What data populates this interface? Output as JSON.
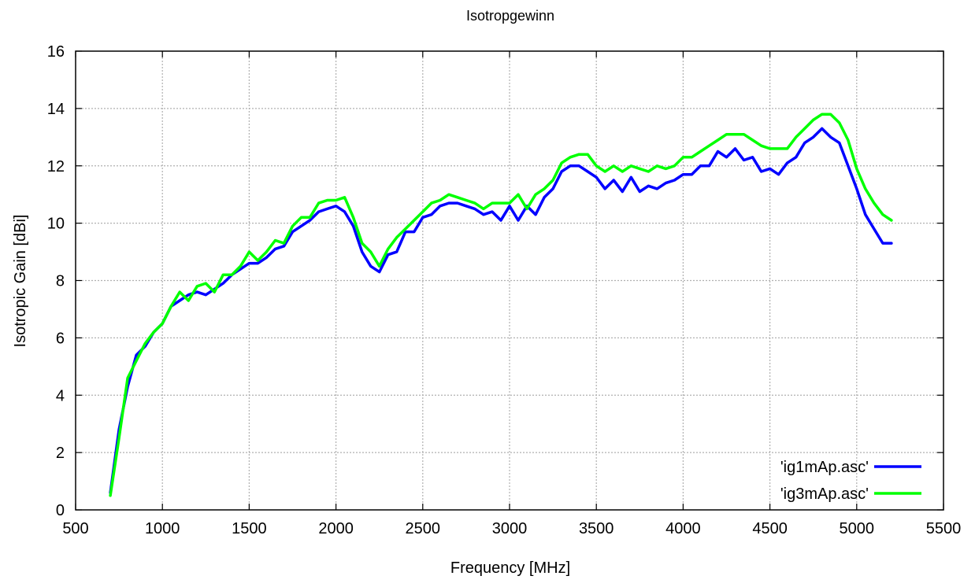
{
  "chart_data": {
    "type": "line",
    "title": "Isotropgewinn",
    "xlabel": "Frequency [MHz]",
    "ylabel": "Isotropic Gain [dBi]",
    "xlim": [
      500,
      5500
    ],
    "ylim": [
      0,
      16
    ],
    "xticks": [
      500,
      1000,
      1500,
      2000,
      2500,
      3000,
      3500,
      4000,
      4500,
      5000,
      5500
    ],
    "yticks": [
      0,
      2,
      4,
      6,
      8,
      10,
      12,
      14,
      16
    ],
    "grid": true,
    "legend": "bottom-right",
    "x": [
      700,
      750,
      800,
      850,
      900,
      950,
      1000,
      1050,
      1100,
      1150,
      1200,
      1250,
      1300,
      1350,
      1400,
      1450,
      1500,
      1550,
      1600,
      1650,
      1700,
      1750,
      1800,
      1850,
      1900,
      1950,
      2000,
      2050,
      2100,
      2150,
      2200,
      2250,
      2300,
      2350,
      2400,
      2450,
      2500,
      2550,
      2600,
      2650,
      2700,
      2750,
      2800,
      2850,
      2900,
      2950,
      3000,
      3050,
      3100,
      3150,
      3200,
      3250,
      3300,
      3350,
      3400,
      3450,
      3500,
      3550,
      3600,
      3650,
      3700,
      3750,
      3800,
      3850,
      3900,
      3950,
      4000,
      4050,
      4100,
      4150,
      4200,
      4250,
      4300,
      4350,
      4400,
      4450,
      4500,
      4550,
      4600,
      4650,
      4700,
      4750,
      4800,
      4850,
      4900,
      4950,
      5000,
      5050,
      5100,
      5150,
      5200
    ],
    "series": [
      {
        "name": "'ig1mAp.asc'",
        "color": "#0000ff",
        "values": [
          0.6,
          2.8,
          4.3,
          5.4,
          5.7,
          6.2,
          6.5,
          7.1,
          7.3,
          7.5,
          7.6,
          7.5,
          7.7,
          7.9,
          8.2,
          8.4,
          8.6,
          8.6,
          8.8,
          9.1,
          9.2,
          9.7,
          9.9,
          10.1,
          10.4,
          10.5,
          10.6,
          10.4,
          9.9,
          9.0,
          8.5,
          8.3,
          8.9,
          9.0,
          9.7,
          9.7,
          10.2,
          10.3,
          10.6,
          10.7,
          10.7,
          10.6,
          10.5,
          10.3,
          10.4,
          10.1,
          10.6,
          10.1,
          10.6,
          10.3,
          10.9,
          11.2,
          11.8,
          12.0,
          12.0,
          11.8,
          11.6,
          11.2,
          11.5,
          11.1,
          11.6,
          11.1,
          11.3,
          11.2,
          11.4,
          11.5,
          11.7,
          11.7,
          12.0,
          12.0,
          12.5,
          12.3,
          12.6,
          12.2,
          12.3,
          11.8,
          11.9,
          11.7,
          12.1,
          12.3,
          12.8,
          13.0,
          13.3,
          13.0,
          12.8,
          12.0,
          11.2,
          10.3,
          9.8,
          9.3,
          9.3
        ]
      },
      {
        "name": "'ig3mAp.asc'",
        "color": "#00ff00",
        "values": [
          0.5,
          2.5,
          4.6,
          5.2,
          5.8,
          6.2,
          6.5,
          7.1,
          7.6,
          7.3,
          7.8,
          7.9,
          7.6,
          8.2,
          8.2,
          8.5,
          9.0,
          8.7,
          9.0,
          9.4,
          9.3,
          9.9,
          10.2,
          10.2,
          10.7,
          10.8,
          10.8,
          10.9,
          10.2,
          9.3,
          9.0,
          8.5,
          9.1,
          9.5,
          9.8,
          10.1,
          10.4,
          10.7,
          10.8,
          11.0,
          10.9,
          10.8,
          10.7,
          10.5,
          10.7,
          10.7,
          10.7,
          11.0,
          10.5,
          11.0,
          11.2,
          11.5,
          12.1,
          12.3,
          12.4,
          12.4,
          12.0,
          11.8,
          12.0,
          11.8,
          12.0,
          11.9,
          11.8,
          12.0,
          11.9,
          12.0,
          12.3,
          12.3,
          12.5,
          12.7,
          12.9,
          13.1,
          13.1,
          13.1,
          12.9,
          12.7,
          12.6,
          12.6,
          12.6,
          13.0,
          13.3,
          13.6,
          13.8,
          13.8,
          13.5,
          12.9,
          11.9,
          11.2,
          10.7,
          10.3,
          10.1
        ]
      }
    ]
  }
}
